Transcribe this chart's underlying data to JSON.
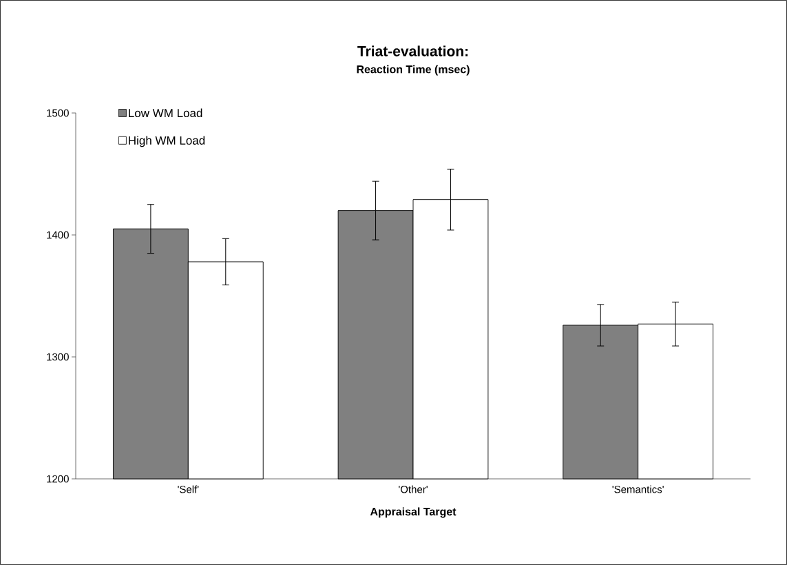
{
  "chart_data": {
    "type": "bar",
    "title": "Triat-evaluation:",
    "subtitle": "Reaction Time (msec)",
    "xlabel": "Appraisal Target",
    "categories": [
      "'Self'",
      "'Other'",
      "'Semantics'"
    ],
    "series": [
      {
        "name": "Low WM Load",
        "color": "#808080",
        "values": [
          1405,
          1420,
          1326
        ],
        "errors": [
          20,
          24,
          17
        ]
      },
      {
        "name": "High WM Load",
        "color": "#ffffff",
        "values": [
          1378,
          1429,
          1327
        ],
        "errors": [
          19,
          25,
          18
        ]
      }
    ],
    "ylim": [
      1200,
      1500
    ],
    "yticks": [
      1200,
      1300,
      1400,
      1500
    ],
    "grid": false,
    "legend": "top left"
  }
}
